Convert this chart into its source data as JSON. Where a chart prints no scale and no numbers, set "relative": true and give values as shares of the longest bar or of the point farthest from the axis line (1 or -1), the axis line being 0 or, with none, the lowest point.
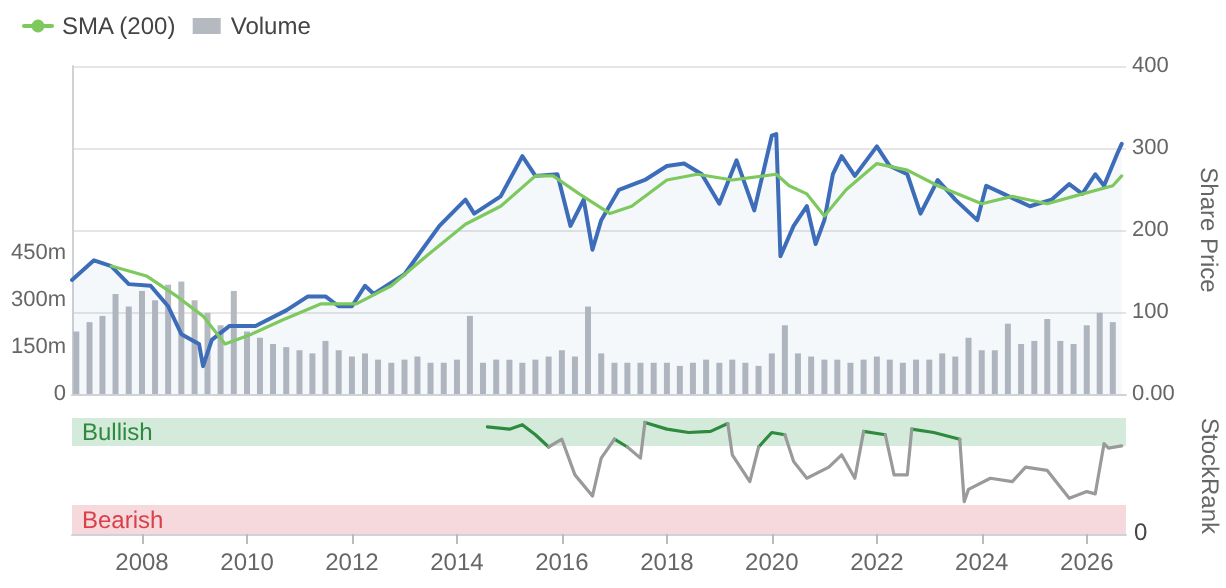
{
  "chart_data": [
    {
      "type": "line",
      "ylabel": "Share Price",
      "legend": "top left",
      "grid": "y",
      "tick_labels": "y",
      "xlim": [
        "2006-09",
        "2026-10"
      ],
      "xticks": [
        "2008",
        "2010",
        "2012",
        "2014",
        "2016",
        "2018",
        "2020",
        "2022",
        "2024",
        "2026"
      ],
      "ylim": [
        0,
        400
      ],
      "yticks": [
        {
          "value": 0,
          "label": "0.00"
        },
        100,
        200,
        300,
        400
      ],
      "y2lim": [
        0,
        1050
      ],
      "y2ticks": [
        0,
        {
          "value": 150,
          "label": "150m"
        },
        {
          "value": 300,
          "label": "300m"
        },
        {
          "value": 450,
          "label": "450m"
        }
      ],
      "series": [
        {
          "type": "area",
          "color": "#3d6cb9",
          "x": [
            "2006-09",
            "2007-02",
            "2007-06",
            "2007-10",
            "2008-03",
            "2008-07",
            "2008-10",
            "2009-02",
            "2009-03",
            "2009-05",
            "2009-09",
            "2010-03",
            "2010-10",
            "2011-03",
            "2011-07",
            "2011-10",
            "2012-01",
            "2012-04",
            "2012-06",
            "2013-01",
            "2013-04",
            "2013-09",
            "2014-03",
            "2014-05",
            "2014-11",
            "2015-04",
            "2015-07",
            "2015-12",
            "2016-03",
            "2016-06",
            "2016-08",
            "2016-10",
            "2017-02",
            "2017-08",
            "2018-01",
            "2018-05",
            "2018-09",
            "2019-01",
            "2019-05",
            "2019-09",
            "2020-01",
            "2020-02",
            "2020-03",
            "2020-06",
            "2020-09",
            "2020-11",
            "2021-01",
            "2021-03",
            "2021-05",
            "2021-08",
            "2022-01",
            "2022-04",
            "2022-08",
            "2022-11",
            "2023-03",
            "2023-07",
            "2023-12",
            "2024-02",
            "2024-06",
            "2024-12",
            "2025-05",
            "2025-09",
            "2025-12",
            "2026-03",
            "2026-05",
            "2026-08",
            "2026-09"
          ],
          "values": [
            139,
            163,
            156,
            134,
            132,
            107,
            73,
            61,
            34,
            66,
            83,
            83,
            102,
            119,
            119,
            107,
            107,
            132,
            122,
            146,
            168,
            205,
            237,
            220,
            241,
            290,
            266,
            268,
            205,
            237,
            176,
            212,
            249,
            261,
            278,
            281,
            268,
            232,
            285,
            224,
            315,
            317,
            168,
            205,
            229,
            183,
            212,
            268,
            290,
            266,
            302,
            278,
            268,
            220,
            261,
            237,
            212,
            254,
            244,
            229,
            237,
            256,
            244,
            268,
            254,
            293,
            305
          ]
        },
        {
          "name": "SMA (200)",
          "color": "#7dc95e",
          "x": [
            "2007-06",
            "2008-02",
            "2008-09",
            "2009-03",
            "2009-08",
            "2010-02",
            "2010-09",
            "2011-06",
            "2012-02",
            "2012-10",
            "2013-06",
            "2014-03",
            "2014-11",
            "2015-07",
            "2015-11",
            "2016-05",
            "2016-12",
            "2017-05",
            "2018-01",
            "2018-08",
            "2019-04",
            "2020-02",
            "2020-05",
            "2020-09",
            "2021-01",
            "2021-06",
            "2022-01",
            "2022-08",
            "2023-03",
            "2024-01",
            "2024-08",
            "2025-04",
            "2025-10",
            "2026-07",
            "2026-09"
          ],
          "values": [
            156,
            144,
            119,
            95,
            61,
            73,
            90,
            110,
            110,
            132,
            168,
            207,
            229,
            266,
            266,
            244,
            220,
            229,
            261,
            268,
            261,
            268,
            254,
            244,
            217,
            249,
            281,
            273,
            254,
            232,
            241,
            232,
            241,
            254,
            266
          ]
        },
        {
          "name": "Volume",
          "type": "bar",
          "axis": "y2",
          "color": "#b5b9c0",
          "x": [
            "2006-10",
            "2007-01",
            "2007-04",
            "2007-07",
            "2007-10",
            "2008-01",
            "2008-04",
            "2008-07",
            "2008-10",
            "2009-01",
            "2009-04",
            "2009-07",
            "2009-10",
            "2010-01",
            "2010-04",
            "2010-07",
            "2010-10",
            "2011-01",
            "2011-04",
            "2011-07",
            "2011-10",
            "2012-01",
            "2012-04",
            "2012-07",
            "2012-10",
            "2013-01",
            "2013-04",
            "2013-07",
            "2013-10",
            "2014-01",
            "2014-04",
            "2014-07",
            "2014-10",
            "2015-01",
            "2015-04",
            "2015-07",
            "2015-10",
            "2016-01",
            "2016-04",
            "2016-07",
            "2016-10",
            "2017-01",
            "2017-04",
            "2017-07",
            "2017-10",
            "2018-01",
            "2018-04",
            "2018-07",
            "2018-10",
            "2019-01",
            "2019-04",
            "2019-07",
            "2019-10",
            "2020-01",
            "2020-04",
            "2020-07",
            "2020-10",
            "2021-01",
            "2021-04",
            "2021-07",
            "2021-10",
            "2022-01",
            "2022-04",
            "2022-07",
            "2022-10",
            "2023-01",
            "2023-04",
            "2023-07",
            "2023-10",
            "2024-01",
            "2024-04",
            "2024-07",
            "2024-10",
            "2025-01",
            "2025-04",
            "2025-07",
            "2025-10",
            "2026-01",
            "2026-04",
            "2026-07"
          ],
          "values": [
            200,
            230,
            250,
            320,
            280,
            330,
            300,
            350,
            360,
            300,
            260,
            220,
            330,
            200,
            180,
            160,
            150,
            140,
            130,
            170,
            140,
            120,
            130,
            110,
            100,
            110,
            120,
            100,
            100,
            110,
            250,
            100,
            110,
            110,
            100,
            110,
            120,
            140,
            120,
            280,
            130,
            100,
            100,
            100,
            100,
            100,
            90,
            100,
            110,
            100,
            110,
            100,
            90,
            130,
            220,
            130,
            120,
            110,
            110,
            100,
            110,
            120,
            110,
            100,
            110,
            110,
            130,
            120,
            180,
            140,
            140,
            225,
            160,
            170,
            240,
            170,
            160,
            220,
            260,
            230
          ]
        }
      ]
    },
    {
      "type": "line",
      "relative": true,
      "ylabel": "StockRank",
      "tick_labels": "x",
      "xlim": [
        "2006-09",
        "2026-10"
      ],
      "xticks": [
        "2008",
        "2010",
        "2012",
        "2014",
        "2016",
        "2018",
        "2020",
        "2022",
        "2024",
        "2026"
      ],
      "bands": [
        {
          "axis": "y",
          "from": 0.79,
          "to": 1.04,
          "label": "Bullish",
          "color": "#d4eadb"
        },
        {
          "axis": "y",
          "from": 0,
          "to": 0.26,
          "label": "Bearish",
          "color": "#f6d9dc"
        }
      ],
      "annotations": [
        "0"
      ],
      "series": [
        {
          "color": "#2e8b3e",
          "x": [
            "2014-08",
            "2015-01",
            "2015-04",
            "2015-07",
            "2015-10",
            "2016-06",
            "2017-01",
            "2017-04",
            "2017-06",
            "2017-08",
            "2018-01",
            "2018-06",
            "2018-11",
            "2019-03",
            "2019-06",
            "2019-10",
            "2020-01",
            "2020-04",
            "2021-01",
            "2021-10",
            "2022-03",
            "2022-06",
            "2022-09",
            "2023-02",
            "2023-08"
          ],
          "values": [
            0.96,
            0.94,
            0.98,
            0.89,
            0.78,
            null,
            0.85,
            0.78,
            null,
            1,
            0.94,
            0.91,
            0.92,
            0.99,
            null,
            0.78,
            0.91,
            0.89,
            null,
            0.92,
            0.89,
            null,
            0.94,
            0.91,
            0.85
          ]
        },
        {
          "color": "#9a9a9a",
          "x": [
            "2015-10",
            "2016-01",
            "2016-04",
            "2016-08",
            "2016-10",
            "2017-01",
            "2017-02",
            "2017-04",
            "2017-07",
            "2017-08",
            "2018-06",
            "2019-03",
            "2019-04",
            "2019-08",
            "2019-10",
            "2020-01",
            "2020-04",
            "2020-06",
            "2020-09",
            "2021-02",
            "2021-05",
            "2021-08",
            "2021-10",
            "2022-01",
            "2022-03",
            "2022-05",
            "2022-08",
            "2022-09",
            "2023-02",
            "2023-08",
            "2023-09",
            "2023-10",
            "2024-03",
            "2024-08",
            "2024-11",
            "2025-04",
            "2025-09",
            "2026-01",
            "2026-03",
            "2026-05",
            "2026-06",
            "2026-09"
          ],
          "values": [
            0.78,
            0.85,
            0.53,
            0.34,
            0.68,
            0.85,
            null,
            0.78,
            0.68,
            1,
            null,
            0.99,
            0.71,
            0.47,
            0.78,
            null,
            0.89,
            0.65,
            0.5,
            0.6,
            0.71,
            0.5,
            0.92,
            null,
            0.89,
            0.53,
            0.53,
            0.94,
            null,
            0.85,
            0.29,
            0.4,
            0.5,
            0.47,
            0.6,
            0.57,
            0.32,
            0.38,
            0.36,
            0.81,
            0.77,
            0.79
          ]
        }
      ]
    }
  ]
}
